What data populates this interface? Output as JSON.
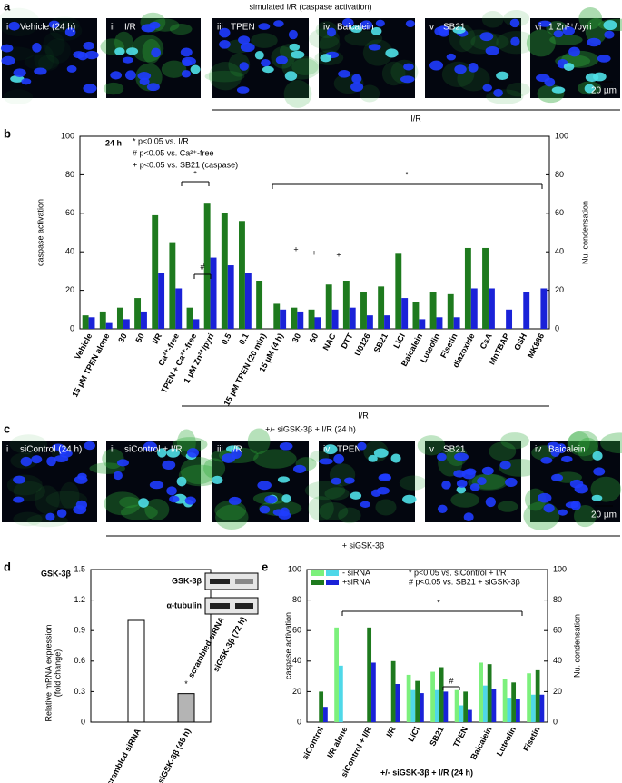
{
  "figure_panels": {
    "a": {
      "label": "a",
      "title": "simulated I/R (caspase activation)",
      "images": [
        {
          "num": "i",
          "label": "Vehicle (24 h)"
        },
        {
          "num": "ii",
          "label": "I/R"
        },
        {
          "num": "iii",
          "label": "TPEN"
        },
        {
          "num": "iv",
          "label": "Baicalein"
        },
        {
          "num": "v",
          "label": "SB21"
        },
        {
          "num": "vi",
          "label": "1 Zn²⁺/pyri"
        }
      ],
      "scale": "20 µm",
      "bracket": "I/R"
    },
    "c": {
      "label": "c",
      "title": "+/- siGSK-3β + I/R (24 h)",
      "images": [
        {
          "num": "i",
          "label": "siControl (24 h)"
        },
        {
          "num": "ii",
          "label": "siControl + I/R"
        },
        {
          "num": "iii",
          "label": "I/R"
        },
        {
          "num": "iv",
          "label": "TPEN"
        },
        {
          "num": "v",
          "label": "SB21"
        },
        {
          "num": "iv",
          "label": "Baicalein"
        }
      ],
      "scale": "20 µm",
      "bracket": "+ siGSK-3β"
    },
    "d_inset": {
      "bands": [
        "GSK-3β",
        "α-tubulin"
      ],
      "lanes": [
        "scrambled siRNA",
        "siGSK-3β (72 h)"
      ]
    }
  },
  "chart_data": [
    {
      "type": "bar",
      "panel": "b",
      "title": "24 h",
      "categories": [
        "Vehicle",
        "15 µM TPEN alone",
        "30",
        "50",
        "I/R",
        "Ca²⁺-free",
        "TPEN + Ca²⁺-free",
        "1 µM Zn²⁺/pyri",
        "0.5",
        "0.1",
        "15 µM TPEN (20 min)",
        "15 µM (4 h)",
        "30",
        "50",
        "NAC",
        "DTT",
        "U0126",
        "SB21",
        "LiCl",
        "Baicalein",
        "Luteolin",
        "Fisetin",
        "diazoxide",
        "CsA",
        "MnTBAP",
        "GSH",
        "MK886"
      ],
      "series": [
        {
          "name": "caspase activation",
          "color": "#1e7a1e",
          "values": [
            7,
            9,
            11,
            16,
            59,
            45,
            11,
            65,
            60,
            56,
            25,
            13,
            11,
            10,
            23,
            25,
            19,
            22,
            39,
            14,
            19,
            18,
            42,
            42,
            null,
            null,
            null
          ]
        },
        {
          "name": "Nu. condensation",
          "color": "#1a22d8",
          "axis": "y2",
          "values": [
            6,
            3,
            5,
            9,
            29,
            21,
            5,
            37,
            33,
            29,
            null,
            10,
            9,
            6,
            10,
            11,
            7,
            7,
            16,
            5,
            6,
            6,
            21,
            21,
            10,
            19,
            21
          ]
        }
      ],
      "ylim": [
        0,
        100
      ],
      "yticks": [
        0,
        20,
        40,
        60,
        80,
        100
      ],
      "y2lim": [
        0,
        100
      ],
      "y2ticks": [
        0,
        20,
        40,
        60,
        80,
        100
      ],
      "annotations": [
        "* p<0.05 vs. I/R",
        "# p<0.05 vs. Ca²⁺-free",
        "+ p<0.05 vs. SB21 (caspase)"
      ],
      "markers": [
        "*",
        "#",
        "*",
        "+",
        "+",
        "+"
      ],
      "x_bracket": "I/R"
    },
    {
      "type": "bar",
      "panel": "d",
      "title": "GSK-3β",
      "ylabel": [
        "Relative mRNA expression",
        "(fold change)"
      ],
      "categories": [
        "scrambled siRNA",
        "siGSK-3β (48 h)"
      ],
      "values": [
        1.0,
        0.28
      ],
      "colors": [
        "#ffffff",
        "#b4b4b4"
      ],
      "ylim": [
        0,
        1.5
      ],
      "yticks": [
        0,
        0.3,
        0.6,
        0.9,
        1.2,
        1.5
      ],
      "markers": [
        "*"
      ]
    },
    {
      "type": "grouped_bar",
      "panel": "e",
      "ylabel": "caspase activation",
      "y2label": "Nu. condensation",
      "xlabel": "+/- siGSK-3β + I/R (24 h)",
      "categories": [
        "siControl",
        "I/R alone",
        "siControl + I/R",
        "I/R",
        "LiCl",
        "SB21",
        "TPEN",
        "Baicalein",
        "Luteolin",
        "Fisetin"
      ],
      "series": [
        {
          "name": "- siRNA",
          "color": "#7cf07c",
          "values": [
            null,
            62,
            null,
            null,
            31,
            33,
            21,
            39,
            28,
            32
          ],
          "nu_color": "#4fd8e8",
          "nu_values": [
            null,
            37,
            null,
            null,
            21,
            21,
            11,
            24,
            16,
            18
          ]
        },
        {
          "name": "+siRNA",
          "color": "#1e7a1e",
          "values": [
            20,
            null,
            62,
            40,
            27,
            36,
            20,
            38,
            26,
            34
          ],
          "nu_color": "#1a22d8",
          "nu_values": [
            10,
            null,
            39,
            25,
            19,
            20,
            8,
            22,
            15,
            18
          ]
        }
      ],
      "ylim": [
        0,
        100
      ],
      "yticks": [
        0,
        20,
        40,
        60,
        80,
        100
      ],
      "y2lim": [
        0,
        100
      ],
      "y2ticks": [
        0,
        20,
        40,
        60,
        80,
        100
      ],
      "annotations": [
        "* p<0.05 vs. siControl + I/R",
        "# p<0.05 vs. SB21 + siGSK-3β"
      ],
      "markers": [
        "*",
        "#"
      ]
    }
  ]
}
